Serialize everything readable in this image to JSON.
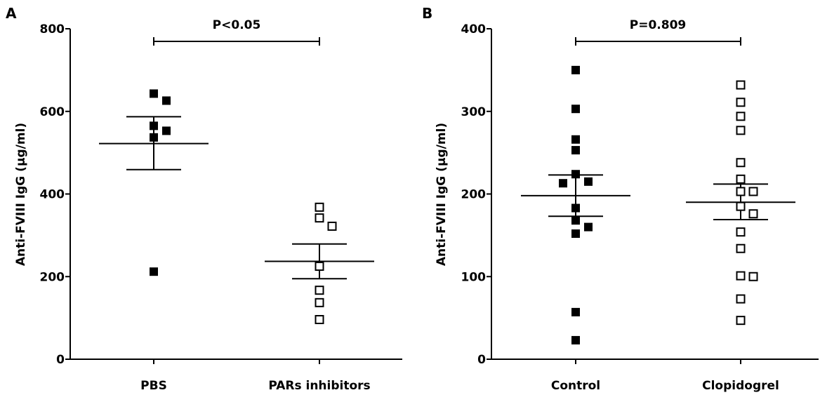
{
  "chart_data": [
    {
      "type": "scatter",
      "panel": "A",
      "title": "",
      "ylabel": "Anti-FVIII IgG (µg/ml)",
      "ylim": [
        0,
        800
      ],
      "yticks": [
        0,
        200,
        400,
        600,
        800
      ],
      "categories": [
        "PBS",
        "PARs inhibitors"
      ],
      "series": [
        {
          "category": "PBS",
          "marker": "filled-square",
          "values": [
            643,
            626,
            565,
            553,
            537,
            212
          ],
          "mean": 522,
          "sem_upper": 587,
          "sem_lower": 459
        },
        {
          "category": "PARs inhibitors",
          "marker": "open-square",
          "values": [
            368,
            342,
            322,
            225,
            167,
            137,
            96
          ],
          "mean": 237,
          "sem_upper": 279,
          "sem_lower": 195
        }
      ],
      "comparison": {
        "label": "P<0.05",
        "from": 0,
        "to": 1
      }
    },
    {
      "type": "scatter",
      "panel": "B",
      "title": "",
      "ylabel": "Anti-FVIII IgG (µg/ml)",
      "ylim": [
        0,
        400
      ],
      "yticks": [
        0,
        100,
        200,
        300,
        400
      ],
      "categories": [
        "Control",
        "Clopidogrel"
      ],
      "series": [
        {
          "category": "Control",
          "marker": "filled-square",
          "values": [
            350,
            303,
            266,
            253,
            224,
            215,
            213,
            183,
            168,
            160,
            152,
            57,
            23
          ],
          "mean": 198,
          "sem_upper": 223,
          "sem_lower": 173
        },
        {
          "category": "Clopidogrel",
          "marker": "open-square",
          "values": [
            332,
            311,
            294,
            277,
            238,
            218,
            203,
            203,
            185,
            176,
            154,
            134,
            101,
            100,
            73,
            47
          ],
          "mean": 190,
          "sem_upper": 212,
          "sem_lower": 169
        }
      ],
      "comparison": {
        "label": "P=0.809",
        "from": 0,
        "to": 1
      }
    }
  ]
}
